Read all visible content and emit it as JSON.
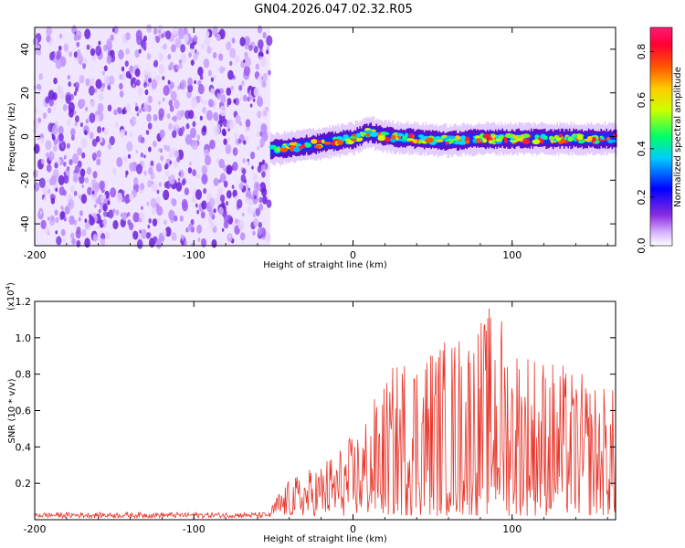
{
  "title": "GN04.2026.047.02.32.R05",
  "chart_data": [
    {
      "type": "heatmap",
      "xlabel": "Height of straight line (km)",
      "ylabel": "Frequency (Hz)",
      "xlim": [
        -200,
        165
      ],
      "ylim": [
        -50,
        50
      ],
      "xticks": [
        "-200",
        "-100",
        "0",
        "100"
      ],
      "yticks": [
        "40",
        "20",
        "0",
        "-20",
        "-40"
      ],
      "colorbar": {
        "label": "Normalized spectral amplitude",
        "ticks": [
          "0.0",
          "0.2",
          "0.4",
          "0.6",
          "0.8"
        ],
        "range": [
          0,
          0.9
        ]
      },
      "noise_region_x": [
        -200,
        -52
      ],
      "signal_band": {
        "x": [
          -52,
          -40,
          -20,
          0,
          10,
          20,
          40,
          60,
          80,
          100,
          120,
          140,
          165
        ],
        "center_freq": [
          -6,
          -5,
          -3,
          -1,
          2,
          0,
          -1,
          -2,
          -1,
          -1,
          -1,
          -1,
          -1
        ],
        "half_width_hz": 4
      }
    },
    {
      "type": "line",
      "xlabel": "Height of straight line (km)",
      "ylabel": "SNR (10 * v/v)",
      "scale_label": "(x10",
      "scale_exp": "4",
      "scale_close": ")",
      "xlim": [
        -200,
        165
      ],
      "ylim": [
        0,
        1.2
      ],
      "xticks": [
        "-200",
        "-100",
        "0",
        "100"
      ],
      "yticks": [
        "0.2",
        "0.4",
        "0.6",
        "0.8",
        "1.0",
        "1.2"
      ],
      "series": [
        {
          "color": "#e8362b",
          "envelope_x": [
            -200,
            -52,
            -48,
            -40,
            -20,
            0,
            10,
            20,
            30,
            40,
            60,
            80,
            90,
            100,
            120,
            140,
            165
          ],
          "envelope_y": [
            0.03,
            0.03,
            0.12,
            0.2,
            0.3,
            0.45,
            0.6,
            0.75,
            0.9,
            0.95,
            1.0,
            1.1,
            1.2,
            1.0,
            0.9,
            0.8,
            0.7
          ]
        }
      ]
    }
  ]
}
